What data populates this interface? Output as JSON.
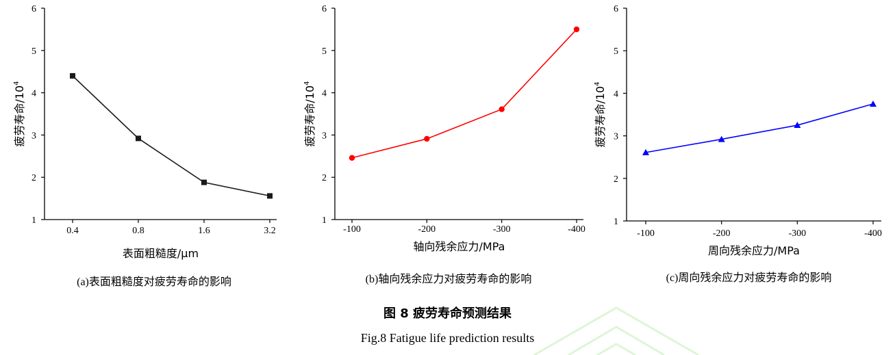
{
  "chart_data": [
    {
      "type": "line",
      "categories": [
        "0.4",
        "0.8",
        "1.6",
        "3.2"
      ],
      "values": [
        4.4,
        2.92,
        1.88,
        1.56
      ],
      "ylabel": "疲劳寿命/10",
      "ylabel_sup": "4",
      "xlabel": "表面粗糙度/μm",
      "ylim": [
        1,
        6
      ],
      "yticks": [
        "1",
        "2",
        "3",
        "4",
        "5",
        "6"
      ],
      "color": "#1a1a1a",
      "marker": "square",
      "caption": "(a)表面粗糙度对疲劳寿命的影响"
    },
    {
      "type": "line",
      "categories": [
        "-100",
        "-200",
        "-300",
        "-400"
      ],
      "values": [
        2.46,
        2.91,
        3.61,
        5.5
      ],
      "ylabel": "疲劳寿命/10",
      "ylabel_sup": "4",
      "xlabel": "轴向残余应力/MPa",
      "ylim": [
        1,
        6
      ],
      "yticks": [
        "1",
        "2",
        "3",
        "4",
        "5",
        "6"
      ],
      "color": "#ff0000",
      "marker": "circle",
      "caption": "(b)轴向残余应力对疲劳寿命的影响"
    },
    {
      "type": "line",
      "categories": [
        "-100",
        "-200",
        "-300",
        "-400"
      ],
      "values": [
        2.61,
        2.92,
        3.25,
        3.75
      ],
      "ylabel": "疲劳寿命/10",
      "ylabel_sup": "4",
      "xlabel": "周向残余应力/MPa",
      "ylim": [
        1,
        6
      ],
      "yticks": [
        "1",
        "2",
        "3",
        "4",
        "5",
        "6"
      ],
      "color": "#0000ff",
      "marker": "triangle",
      "caption": "(c)周向残余应力对疲劳寿命的影响"
    }
  ],
  "figure": {
    "title_cn": "图 8  疲劳寿命预测结果",
    "title_en": "Fig.8 Fatigue life prediction results"
  }
}
